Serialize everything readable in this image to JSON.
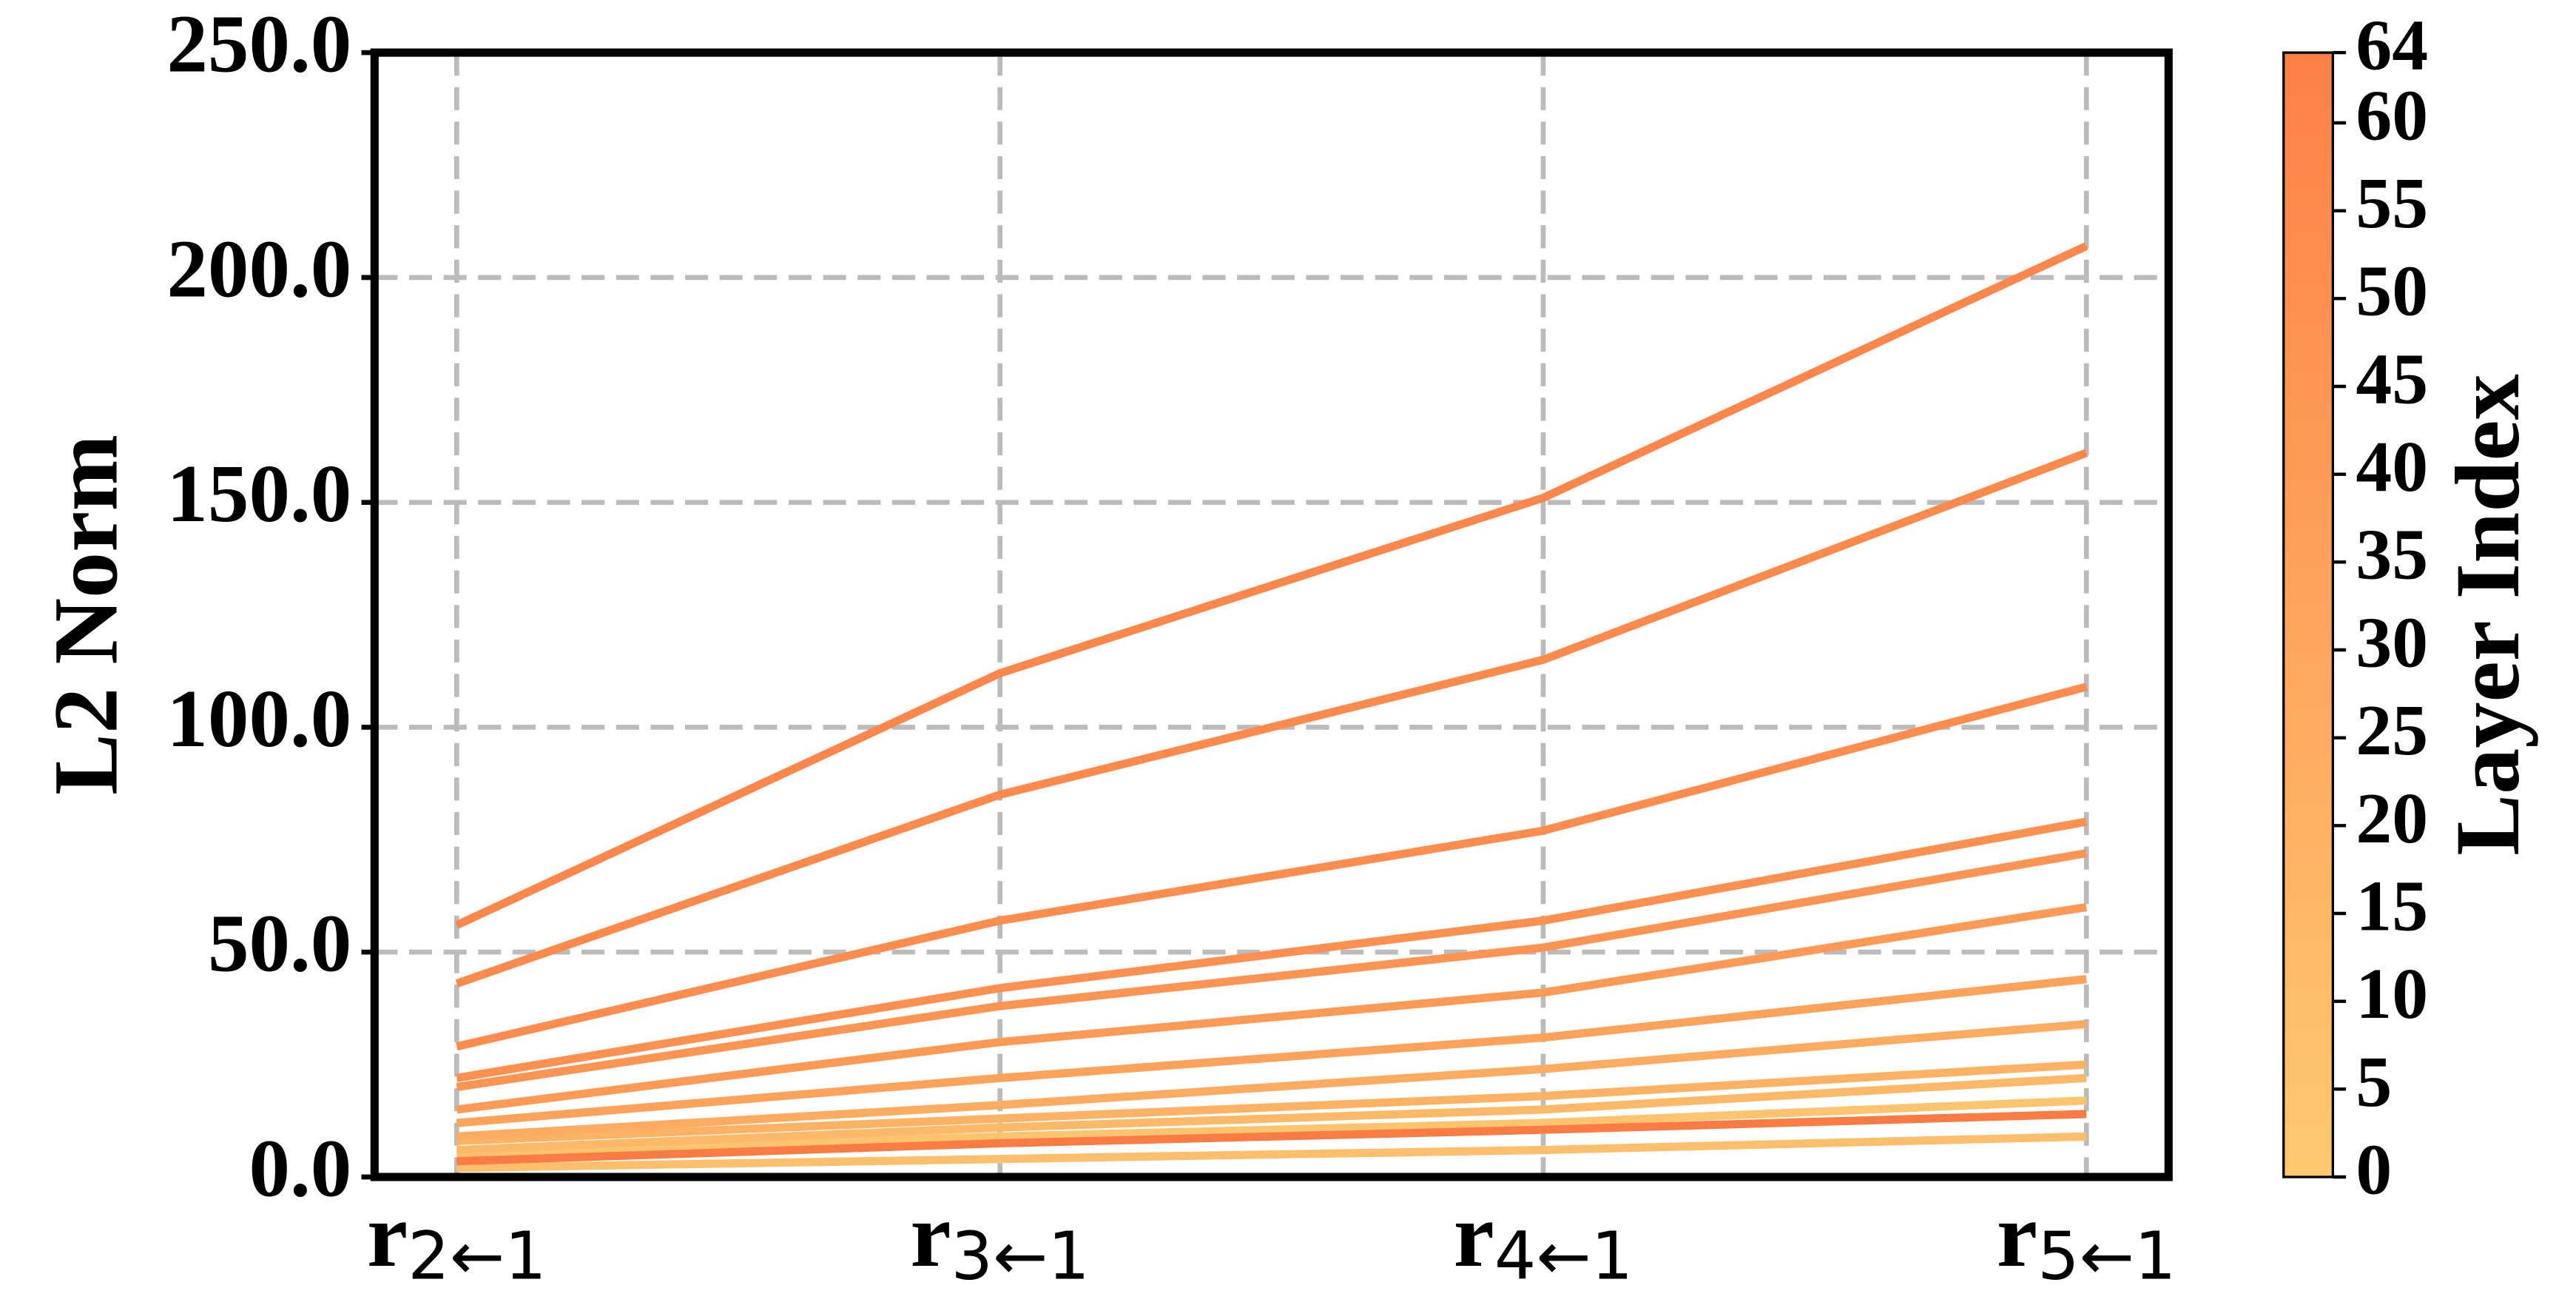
{
  "chart_data": {
    "type": "line",
    "y_label": "L2 Norm",
    "categories": [
      {
        "main": "r",
        "sub": "2←1"
      },
      {
        "main": "r",
        "sub": "3←1"
      },
      {
        "main": "r",
        "sub": "4←1"
      },
      {
        "main": "r",
        "sub": "5←1"
      }
    ],
    "ylim": [
      0,
      250
    ],
    "yticks": [
      {
        "value": 0,
        "label": "0.0"
      },
      {
        "value": 50,
        "label": "50.0"
      },
      {
        "value": 100,
        "label": "100.0"
      },
      {
        "value": 150,
        "label": "150.0"
      },
      {
        "value": 200,
        "label": "200.0"
      },
      {
        "value": 250,
        "label": "250.0"
      }
    ],
    "grid": true,
    "series": [
      {
        "color": "#fdbf6b",
        "values": [
          2,
          4,
          6,
          9
        ]
      },
      {
        "color": "#fdc46f",
        "values": [
          5,
          9,
          12,
          17
        ]
      },
      {
        "color": "#fdb868",
        "values": [
          6,
          11,
          15,
          22
        ]
      },
      {
        "color": "#fdb264",
        "values": [
          8,
          13,
          18,
          25
        ]
      },
      {
        "color": "#fdab60",
        "values": [
          9,
          16,
          24,
          34
        ]
      },
      {
        "color": "#fca25a",
        "values": [
          12,
          22,
          31,
          44
        ]
      },
      {
        "color": "#fc9a56",
        "values": [
          15,
          30,
          41,
          60
        ]
      },
      {
        "color": "#fc9453",
        "values": [
          20,
          38,
          51,
          72
        ]
      },
      {
        "color": "#fc9051",
        "values": [
          22,
          42,
          57,
          79
        ]
      },
      {
        "color": "#fc8d4f",
        "values": [
          29,
          57,
          77,
          109
        ]
      },
      {
        "color": "#fc8a4d",
        "values": [
          43,
          85,
          115,
          161
        ]
      },
      {
        "color": "#fc874c",
        "values": [
          56,
          112,
          151,
          207
        ]
      },
      {
        "color": "#fb7b45",
        "values": [
          3.5,
          7.5,
          10.5,
          14
        ]
      }
    ],
    "colorbar": {
      "label": "Layer Index",
      "clim": [
        0,
        64
      ],
      "colors": [
        "#fec96f",
        "#fd8048"
      ],
      "ticks": [
        0,
        5,
        10,
        15,
        20,
        25,
        30,
        35,
        40,
        45,
        50,
        55,
        60,
        64
      ]
    }
  }
}
